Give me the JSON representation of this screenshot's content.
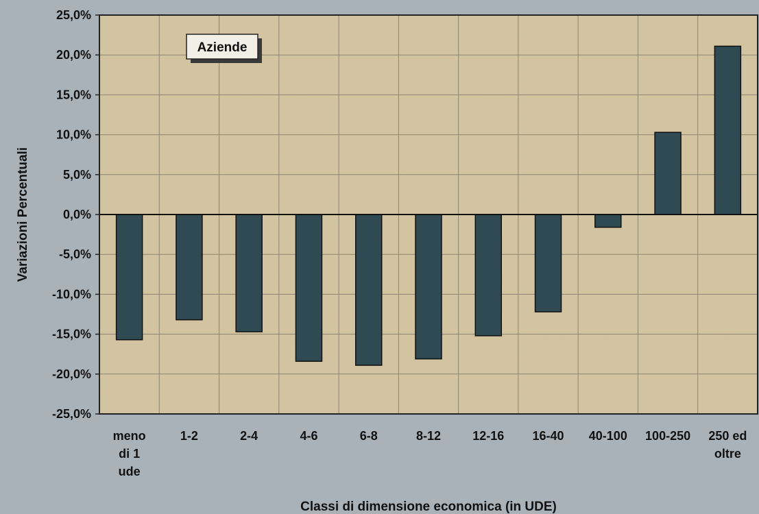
{
  "chart_data": {
    "type": "bar",
    "title": "",
    "annotation": "Aziende",
    "xlabel": "Classi di dimensione economica (in UDE)",
    "ylabel": "Variazioni Percentuali",
    "categories": [
      [
        "meno",
        "di 1",
        "ude"
      ],
      [
        "1-2"
      ],
      [
        "2-4"
      ],
      [
        "4-6"
      ],
      [
        "6-8"
      ],
      [
        "8-12"
      ],
      [
        "12-16"
      ],
      [
        "16-40"
      ],
      [
        "40-100"
      ],
      [
        "100-250"
      ],
      [
        "250 ed",
        "oltre"
      ]
    ],
    "values": [
      -15.7,
      -13.2,
      -14.7,
      -18.4,
      -18.9,
      -18.1,
      -15.2,
      -12.2,
      -1.6,
      10.3,
      21.1
    ],
    "ylim": [
      -25,
      25
    ],
    "yticks": [
      "25,0%",
      "20,0%",
      "15,0%",
      "10,0%",
      "5,0%",
      "0,0%",
      "-5,0%",
      "-10,0%",
      "-15,0%",
      "-20,0%",
      "-25,0%"
    ],
    "grid": true,
    "colors": {
      "bar": "#2f4a52",
      "plot_bg": "#d4c4a0",
      "page_bg": "#a9b2b9",
      "grid": "#8d8570"
    }
  }
}
